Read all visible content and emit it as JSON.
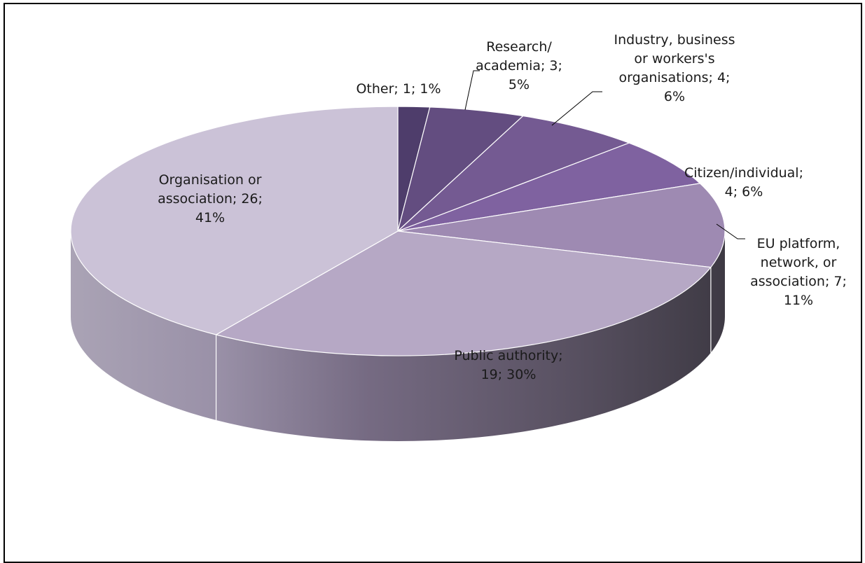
{
  "chart_data": {
    "type": "pie",
    "style": "3d",
    "categories": [
      "Other",
      "Research/ academia",
      "Industry, business or workers's organisations",
      "Citizen/individual",
      "EU platform, network, or association",
      "Public authority",
      "Organisation or association"
    ],
    "values": [
      1,
      3,
      4,
      4,
      7,
      19,
      26
    ],
    "percentages": [
      "1%",
      "5%",
      "6%",
      "6%",
      "11%",
      "30%",
      "41%"
    ],
    "colors": [
      "#4e3d6b",
      "#634d80",
      "#745a92",
      "#7f62a0",
      "#9e8ab2",
      "#b6a8c5",
      "#cbc2d7"
    ],
    "labels": [
      [
        "Other; 1; 1%"
      ],
      [
        "Research/",
        "academia; 3;",
        "5%"
      ],
      [
        "Industry, business",
        "or workers's",
        "organisations; 4;",
        "6%"
      ],
      [
        "Citizen/individual;",
        "4; 6%"
      ],
      [
        "EU platform,",
        "network, or",
        "association; 7;",
        "11%"
      ],
      [
        "Public authority;",
        "19; 30%"
      ],
      [
        "Organisation or",
        "association; 26;",
        "41%"
      ]
    ],
    "legend": "none"
  }
}
